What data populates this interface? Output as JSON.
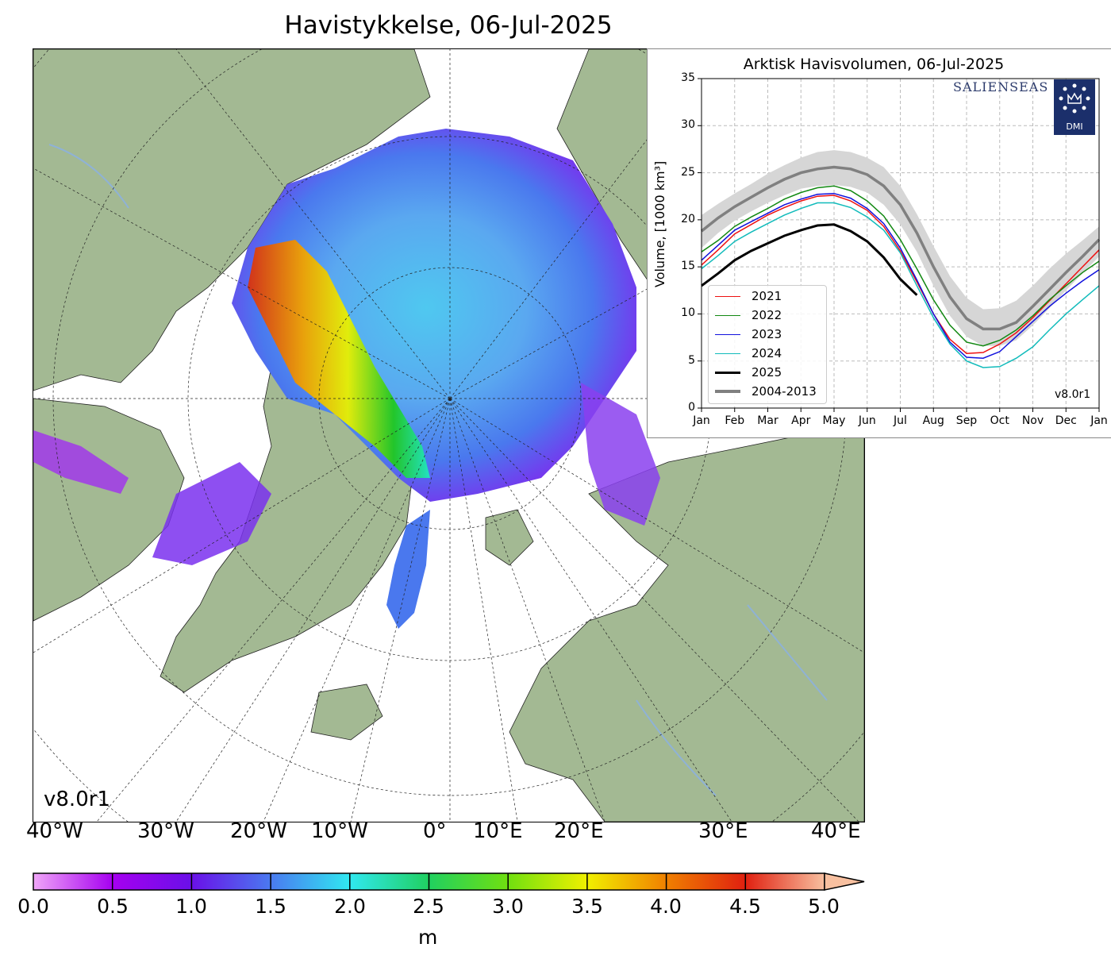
{
  "map": {
    "title": "Havistykkelse, 06-Jul-2025",
    "version": "v8.0r1",
    "longitude_labels": [
      "40°W",
      "30°W",
      "20°W",
      "10°W",
      "0°",
      "10°E",
      "20°E",
      "30°E",
      "40°E"
    ],
    "colors": {
      "land": "#a3b993",
      "water": "#ffffff",
      "rivers": "#8fb2d6"
    }
  },
  "colorbar": {
    "ticks": [
      "0.0",
      "0.5",
      "1.0",
      "1.5",
      "2.0",
      "2.5",
      "3.0",
      "3.5",
      "4.0",
      "4.5",
      "5.0"
    ],
    "unit": "m",
    "extend": "max",
    "colors": [
      "#f0a6f8",
      "#a600f0",
      "#6a10e8",
      "#4a7af0",
      "#30e8f0",
      "#20f0a0",
      "#10c810",
      "#a0f010",
      "#f0f000",
      "#f0a000",
      "#e04010",
      "#d02020",
      "#f8c0a0"
    ]
  },
  "chart_data": {
    "type": "line",
    "title": "Arktisk Havisvolumen, 06-Jul-2025",
    "ylabel": "Volume, [1000 km³]",
    "ylim": [
      0,
      35
    ],
    "yticks": [
      "0",
      "5",
      "10",
      "15",
      "20",
      "25",
      "30",
      "35"
    ],
    "xticks": [
      "Jan",
      "Feb",
      "Mar",
      "Apr",
      "May",
      "Jun",
      "Jul",
      "Aug",
      "Sep",
      "Oct",
      "Nov",
      "Dec",
      "Jan"
    ],
    "x_months": [
      0,
      0.5,
      1,
      1.5,
      2,
      2.5,
      3,
      3.5,
      4,
      4.5,
      5,
      5.5,
      6,
      6.5,
      7,
      7.5,
      8,
      8.5,
      9,
      9.5,
      10,
      10.5,
      11,
      11.5,
      12
    ],
    "grid": true,
    "legend_position": "lower-left",
    "version": "v8.0r1",
    "logos": [
      "SALIENSEAS",
      "DMI"
    ],
    "series": [
      {
        "name": "2021",
        "color": "#ee1111",
        "values": [
          15.2,
          16.8,
          18.5,
          19.5,
          20.5,
          21.3,
          22.0,
          22.5,
          22.6,
          22.0,
          21.0,
          19.3,
          16.7,
          13.4,
          10.0,
          7.3,
          5.8,
          5.9,
          6.8,
          8.0,
          9.6,
          11.4,
          13.2,
          15.0,
          16.8
        ]
      },
      {
        "name": "2022",
        "color": "#118811",
        "values": [
          16.6,
          17.8,
          19.3,
          20.3,
          21.2,
          22.2,
          22.9,
          23.4,
          23.6,
          23.1,
          22.0,
          20.4,
          17.9,
          14.8,
          11.5,
          8.8,
          7.0,
          6.6,
          7.2,
          8.3,
          9.8,
          11.5,
          13.0,
          14.4,
          15.6
        ]
      },
      {
        "name": "2023",
        "color": "#1111dd",
        "values": [
          15.7,
          17.3,
          18.9,
          19.8,
          20.7,
          21.6,
          22.2,
          22.7,
          22.8,
          22.3,
          21.2,
          19.6,
          17.0,
          13.6,
          10.0,
          7.0,
          5.4,
          5.3,
          6.0,
          7.6,
          9.2,
          10.8,
          12.2,
          13.5,
          14.7
        ]
      },
      {
        "name": "2024",
        "color": "#11bbbb",
        "values": [
          14.8,
          16.2,
          17.7,
          18.7,
          19.6,
          20.5,
          21.2,
          21.8,
          21.8,
          21.3,
          20.3,
          18.9,
          16.5,
          13.0,
          9.6,
          6.8,
          5.0,
          4.3,
          4.4,
          5.3,
          6.5,
          8.3,
          10.0,
          11.5,
          13.0
        ]
      },
      {
        "name": "2025",
        "color": "#000000",
        "values": [
          13.0,
          14.3,
          15.7,
          16.7,
          17.5,
          18.3,
          18.9,
          19.4,
          19.5,
          18.8,
          17.7,
          16.0,
          13.7,
          12.0
        ]
      },
      {
        "name": "2004-2013",
        "color": "#808080",
        "values": [
          18.8,
          20.2,
          21.4,
          22.4,
          23.4,
          24.3,
          25.0,
          25.4,
          25.6,
          25.4,
          24.8,
          23.6,
          21.6,
          18.6,
          15.0,
          11.8,
          9.5,
          8.4,
          8.4,
          9.1,
          10.8,
          12.6,
          14.4,
          16.1,
          17.9
        ]
      }
    ],
    "band_2004_2013": {
      "upper": [
        20.5,
        21.7,
        22.8,
        23.8,
        24.9,
        25.8,
        26.6,
        27.2,
        27.4,
        27.2,
        26.6,
        25.6,
        23.6,
        20.6,
        17.2,
        14.0,
        11.7,
        10.5,
        10.6,
        11.4,
        13.0,
        14.8,
        16.4,
        17.8,
        19.3
      ],
      "lower": [
        17.0,
        18.6,
        19.9,
        20.9,
        21.8,
        22.6,
        23.3,
        23.6,
        23.7,
        23.5,
        22.9,
        21.6,
        19.5,
        16.6,
        13.0,
        9.8,
        7.6,
        6.6,
        6.6,
        7.2,
        8.8,
        10.6,
        12.5,
        14.3,
        16.1
      ]
    }
  }
}
